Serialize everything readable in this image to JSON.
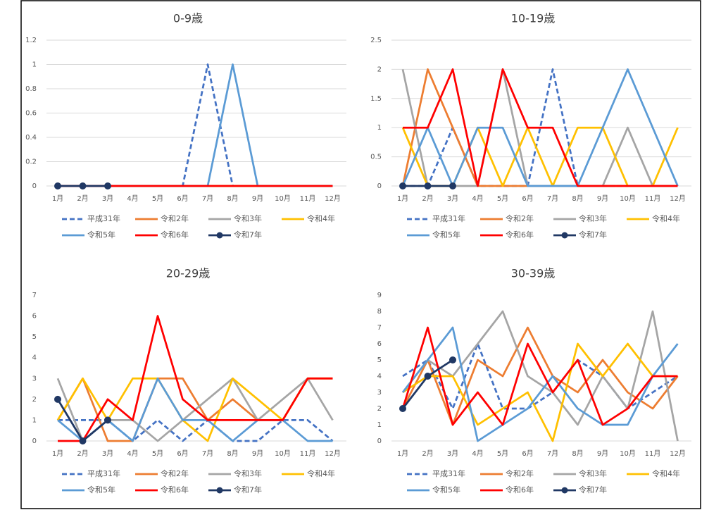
{
  "chart_data": [
    {
      "type": "line",
      "title": "0-9歳",
      "categories": [
        "1月",
        "2月",
        "3月",
        "4月",
        "5月",
        "6月",
        "7月",
        "8月",
        "9月",
        "10月",
        "11月",
        "12月"
      ],
      "ylim": [
        0,
        1.2
      ],
      "yticks": [
        0,
        0.2,
        0.4,
        0.6,
        0.8,
        1,
        1.2
      ],
      "grid": true,
      "series": [
        {
          "name": "平成31年",
          "color": "#4472c4",
          "dashed": true,
          "values": [
            0,
            0,
            0,
            0,
            0,
            0,
            1,
            0,
            0,
            0,
            0,
            0
          ]
        },
        {
          "name": "令和2年",
          "color": "#ed7d31",
          "values": [
            0,
            0,
            0,
            0,
            0,
            0,
            0,
            0,
            0,
            0,
            0,
            0
          ]
        },
        {
          "name": "令和3年",
          "color": "#a5a5a5",
          "values": [
            0,
            0,
            0,
            0,
            0,
            0,
            0,
            0,
            0,
            0,
            0,
            0
          ]
        },
        {
          "name": "令和4年",
          "color": "#ffc000",
          "values": [
            0,
            0,
            0,
            0,
            0,
            0,
            0,
            0,
            0,
            0,
            0,
            0
          ]
        },
        {
          "name": "令和5年",
          "color": "#5b9bd5",
          "values": [
            0,
            0,
            0,
            0,
            0,
            0,
            0,
            1,
            0,
            0,
            0,
            0
          ]
        },
        {
          "name": "令和6年",
          "color": "#ff0000",
          "values": [
            0,
            0,
            0,
            0,
            0,
            0,
            0,
            0,
            0,
            0,
            0,
            0
          ]
        },
        {
          "name": "令和7年",
          "color": "#203864",
          "marker": true,
          "values": [
            0,
            0,
            0,
            null,
            null,
            null,
            null,
            null,
            null,
            null,
            null,
            null
          ]
        }
      ]
    },
    {
      "type": "line",
      "title": "10-19歳",
      "categories": [
        "1月",
        "2月",
        "3月",
        "4月",
        "5月",
        "6月",
        "7月",
        "8月",
        "9月",
        "10月",
        "11月",
        "12月"
      ],
      "ylim": [
        0,
        2.5
      ],
      "yticks": [
        0,
        0.5,
        1,
        1.5,
        2,
        2.5
      ],
      "grid": true,
      "series": [
        {
          "name": "平成31年",
          "color": "#4472c4",
          "dashed": true,
          "values": [
            0,
            0,
            1,
            0,
            0,
            0,
            2,
            0,
            0,
            0,
            0,
            0
          ]
        },
        {
          "name": "令和2年",
          "color": "#ed7d31",
          "values": [
            0,
            2,
            1,
            0,
            0,
            0,
            0,
            0,
            0,
            0,
            0,
            0
          ]
        },
        {
          "name": "令和3年",
          "color": "#a5a5a5",
          "values": [
            2,
            0,
            0,
            0,
            2,
            0,
            0,
            0,
            0,
            1,
            0,
            0
          ]
        },
        {
          "name": "令和4年",
          "color": "#ffc000",
          "values": [
            1,
            0,
            0,
            1,
            0,
            1,
            0,
            1,
            1,
            0,
            0,
            1
          ]
        },
        {
          "name": "令和5年",
          "color": "#5b9bd5",
          "values": [
            0,
            1,
            0,
            1,
            1,
            0,
            0,
            0,
            1,
            2,
            1,
            0
          ]
        },
        {
          "name": "令和6年",
          "color": "#ff0000",
          "values": [
            1,
            1,
            2,
            0,
            2,
            1,
            1,
            0,
            0,
            0,
            0,
            0
          ]
        },
        {
          "name": "令和7年",
          "color": "#203864",
          "marker": true,
          "values": [
            0,
            0,
            0,
            null,
            null,
            null,
            null,
            null,
            null,
            null,
            null,
            null
          ]
        }
      ]
    },
    {
      "type": "line",
      "title": "20-29歳",
      "categories": [
        "1月",
        "2月",
        "3月",
        "4月",
        "5月",
        "6月",
        "7月",
        "8月",
        "9月",
        "10月",
        "11月",
        "12月"
      ],
      "ylim": [
        0,
        7
      ],
      "yticks": [
        0,
        1,
        2,
        3,
        4,
        5,
        6,
        7
      ],
      "grid": false,
      "series": [
        {
          "name": "平成31年",
          "color": "#4472c4",
          "dashed": true,
          "values": [
            1,
            1,
            1,
            0,
            1,
            0,
            1,
            0,
            0,
            1,
            1,
            0
          ]
        },
        {
          "name": "令和2年",
          "color": "#ed7d31",
          "values": [
            1,
            3,
            0,
            0,
            3,
            3,
            1,
            2,
            1,
            1,
            3,
            3
          ]
        },
        {
          "name": "令和3年",
          "color": "#a5a5a5",
          "values": [
            3,
            0,
            1,
            1,
            0,
            1,
            2,
            3,
            1,
            2,
            3,
            1
          ]
        },
        {
          "name": "令和4年",
          "color": "#ffc000",
          "values": [
            1,
            3,
            1,
            3,
            3,
            1,
            0,
            3,
            2,
            1,
            3,
            3
          ]
        },
        {
          "name": "令和5年",
          "color": "#5b9bd5",
          "values": [
            1,
            0,
            1,
            0,
            3,
            1,
            1,
            0,
            1,
            1,
            0,
            0
          ]
        },
        {
          "name": "令和6年",
          "color": "#ff0000",
          "values": [
            0,
            0,
            2,
            1,
            6,
            2,
            1,
            1,
            1,
            1,
            3,
            3
          ]
        },
        {
          "name": "令和7年",
          "color": "#203864",
          "marker": true,
          "values": [
            2,
            0,
            1,
            null,
            null,
            null,
            null,
            null,
            null,
            null,
            null,
            null
          ]
        }
      ]
    },
    {
      "type": "line",
      "title": "30-39歳",
      "categories": [
        "1月",
        "2月",
        "3月",
        "4月",
        "5月",
        "6月",
        "7月",
        "8月",
        "9月",
        "10月",
        "11月",
        "12月"
      ],
      "ylim": [
        0,
        9
      ],
      "yticks": [
        0,
        1,
        2,
        3,
        4,
        5,
        6,
        7,
        8,
        9
      ],
      "grid": false,
      "series": [
        {
          "name": "平成31年",
          "color": "#4472c4",
          "dashed": true,
          "values": [
            4,
            5,
            2,
            6,
            2,
            2,
            3,
            5,
            4,
            2,
            3,
            4
          ]
        },
        {
          "name": "令和2年",
          "color": "#ed7d31",
          "values": [
            2,
            5,
            1,
            5,
            4,
            7,
            4,
            3,
            5,
            3,
            2,
            4
          ]
        },
        {
          "name": "令和3年",
          "color": "#a5a5a5",
          "values": [
            3,
            5,
            4,
            6,
            8,
            4,
            3,
            1,
            4,
            2,
            8,
            0
          ]
        },
        {
          "name": "令和4年",
          "color": "#ffc000",
          "values": [
            3,
            4,
            4,
            1,
            2,
            3,
            0,
            6,
            4,
            6,
            4,
            4
          ]
        },
        {
          "name": "令和5年",
          "color": "#5b9bd5",
          "values": [
            3,
            5,
            7,
            0,
            1,
            2,
            4,
            2,
            1,
            1,
            4,
            6
          ]
        },
        {
          "name": "令和6年",
          "color": "#ff0000",
          "values": [
            2,
            7,
            1,
            3,
            1,
            6,
            3,
            5,
            1,
            2,
            4,
            4
          ]
        },
        {
          "name": "令和7年",
          "color": "#203864",
          "marker": true,
          "values": [
            2,
            4,
            5,
            null,
            null,
            null,
            null,
            null,
            null,
            null,
            null,
            null
          ]
        }
      ]
    }
  ]
}
